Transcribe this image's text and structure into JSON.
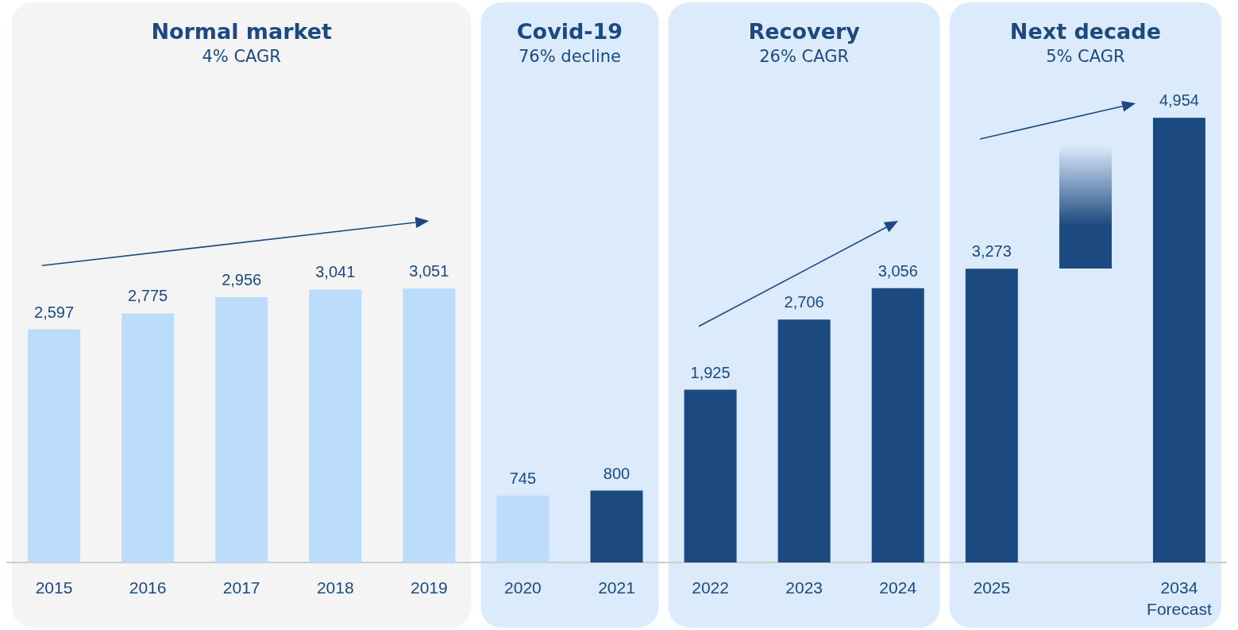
{
  "chart_data": {
    "type": "bar",
    "categories": [
      "2015",
      "2016",
      "2017",
      "2018",
      "2019",
      "2020",
      "2021",
      "2022",
      "2023",
      "2024",
      "2025",
      null,
      "2034\nForecast"
    ],
    "values": [
      2597,
      2775,
      2956,
      3041,
      3051,
      745,
      800,
      1925,
      2706,
      3056,
      3273,
      null,
      4954
    ],
    "value_labels": [
      "2,597",
      "2,775",
      "2,956",
      "3,041",
      "3,051",
      "745",
      "800",
      "1,925",
      "2,706",
      "3,056",
      "3,273",
      null,
      "4,954"
    ],
    "colors": [
      "#bbdcfb",
      "#bbdcfb",
      "#bbdcfb",
      "#bbdcfb",
      "#bbdcfb",
      "#bbdcfb",
      "#1c4980",
      "#1c4980",
      "#1c4980",
      "#1c4980",
      "#1c4980",
      "#1c4980",
      "#1c4980"
    ],
    "bands": [
      {
        "axis": "x",
        "from": "2015",
        "to": "2019",
        "label": "Normal market\n4% CAGR",
        "color": "#f4f4f5"
      },
      {
        "axis": "x",
        "from": "2020",
        "to": "2021",
        "label": "Covid-19\n76% decline",
        "color": "#dbebfb"
      },
      {
        "axis": "x",
        "from": "2022",
        "to": "2024",
        "label": "Recovery\n26% CAGR",
        "color": "#dbebfb"
      },
      {
        "axis": "x",
        "from": "2025",
        "to": "2034\nForecast",
        "label": "Next decade\n5% CAGR",
        "color": "#dbebfb"
      }
    ]
  }
}
